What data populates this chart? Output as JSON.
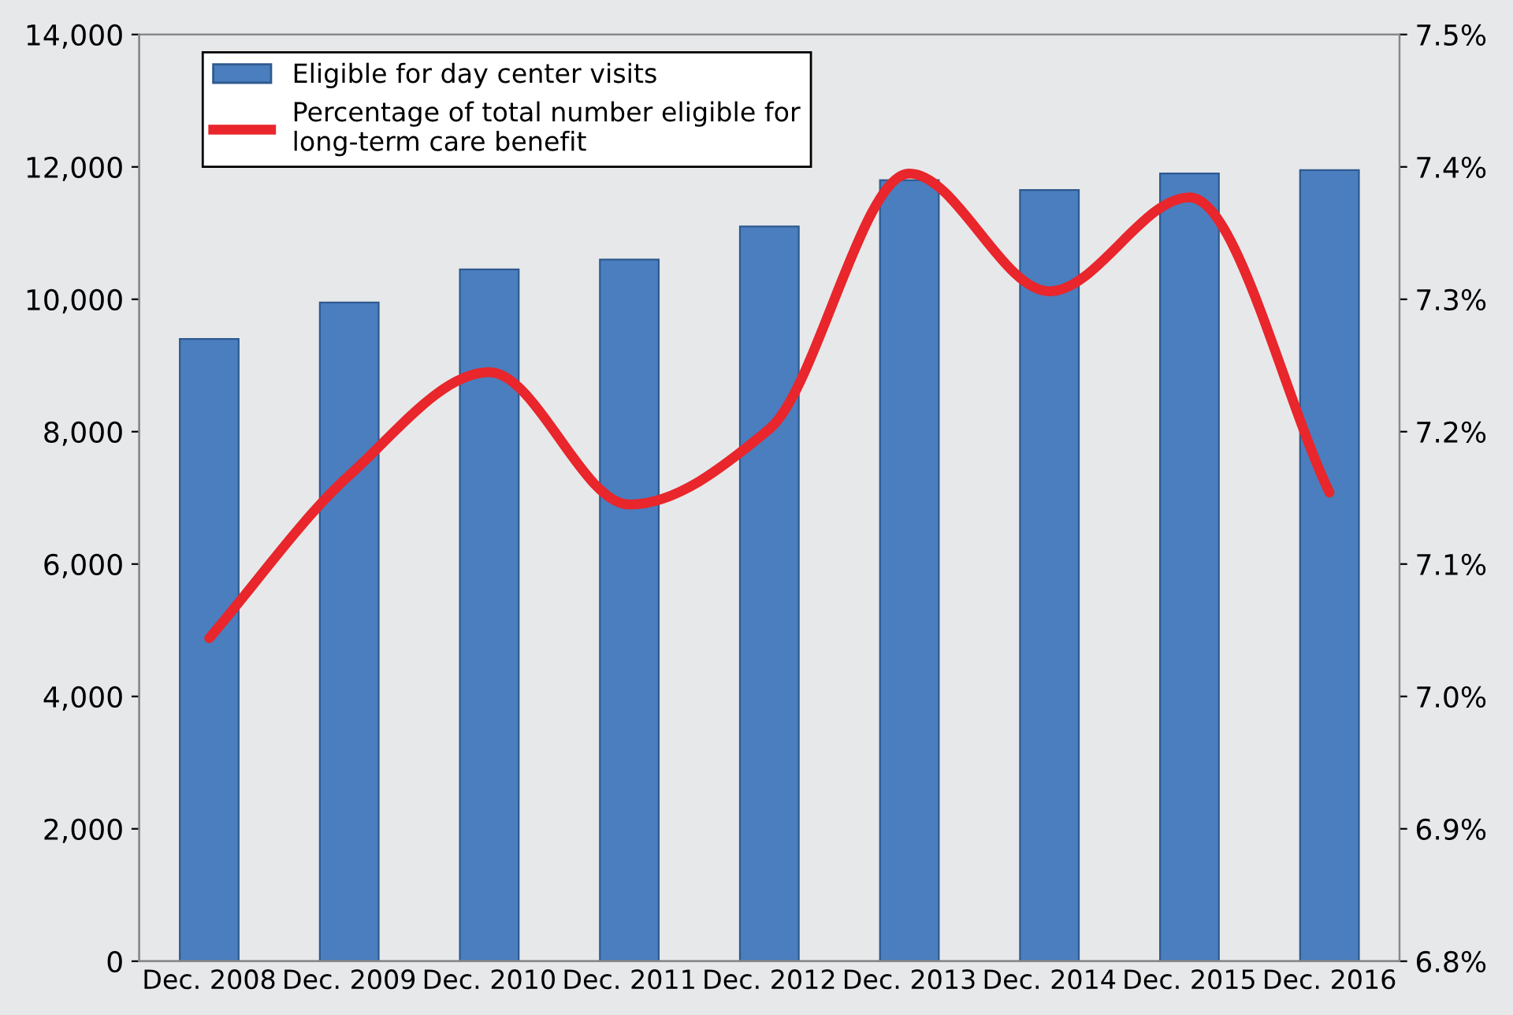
{
  "chart_data": {
    "type": "bar",
    "categories": [
      "Dec. 2008",
      "Dec. 2009",
      "Dec. 2010",
      "Dec. 2011",
      "Dec. 2012",
      "Dec. 2013",
      "Dec. 2014",
      "Dec. 2015",
      "Dec. 2016"
    ],
    "series": [
      {
        "name": "Eligible for day center visits",
        "color": "#4a7ebf",
        "values": [
          9400,
          9950,
          10450,
          10600,
          11100,
          11800,
          11650,
          11900,
          11950
        ]
      },
      {
        "name": "Percentage of total number eligible for\nlong-term care benefit",
        "type": "line",
        "axis": "y2",
        "color": "#e8262b",
        "values": [
          7.044,
          7.167,
          7.245,
          7.145,
          7.202,
          7.395,
          7.306,
          7.377,
          7.154
        ]
      }
    ],
    "ylim": [
      0,
      14000
    ],
    "yticks": [
      {
        "value": 0,
        "label": "0"
      },
      {
        "value": 2000,
        "label": "2,000"
      },
      {
        "value": 4000,
        "label": "4,000"
      },
      {
        "value": 6000,
        "label": "6,000"
      },
      {
        "value": 8000,
        "label": "8,000"
      },
      {
        "value": 10000,
        "label": "10,000"
      },
      {
        "value": 12000,
        "label": "12,000"
      },
      {
        "value": 14000,
        "label": "14,000"
      }
    ],
    "y2lim": [
      6.8,
      7.5
    ],
    "y2ticks": [
      {
        "value": 6.8,
        "label": "6.8%"
      },
      {
        "value": 6.9,
        "label": "6.9%"
      },
      {
        "value": 7.0,
        "label": "7.0%"
      },
      {
        "value": 7.1,
        "label": "7.1%"
      },
      {
        "value": 7.2,
        "label": "7.2%"
      },
      {
        "value": 7.3,
        "label": "7.3%"
      },
      {
        "value": 7.4,
        "label": "7.4%"
      },
      {
        "value": 7.5,
        "label": "7.5%"
      }
    ],
    "legend": "top left",
    "grid": false,
    "marker": "none",
    "line_style": "solid"
  }
}
